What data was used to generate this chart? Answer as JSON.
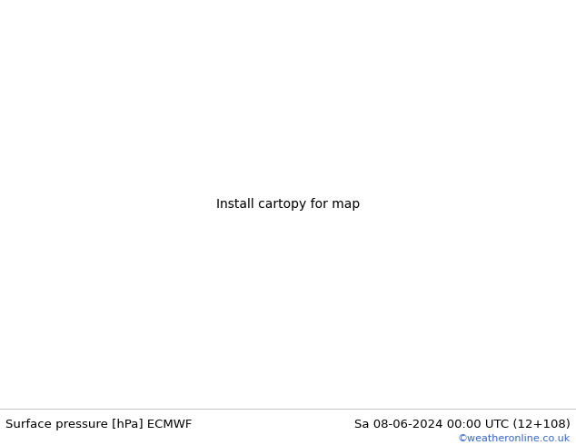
{
  "title_left": "Surface pressure [hPa] ECMWF",
  "title_right": "Sa 08-06-2024 00:00 UTC (12+108)",
  "credit": "©weatheronline.co.uk",
  "ocean_color": "#c8d4dc",
  "land_color": "#b8d8a0",
  "coast_color": "#888877",
  "fig_width": 6.34,
  "fig_height": 4.9,
  "dpi": 100,
  "bottom_bar_color": "#ffffff",
  "title_fontsize": 9.5,
  "credit_color": "#3366cc",
  "credit_fontsize": 8,
  "lon_min": 80,
  "lon_max": 200,
  "lat_min": -20,
  "lat_max": 60,
  "blue_color": "#2244bb",
  "red_color": "#cc2200",
  "black_color": "#111111"
}
